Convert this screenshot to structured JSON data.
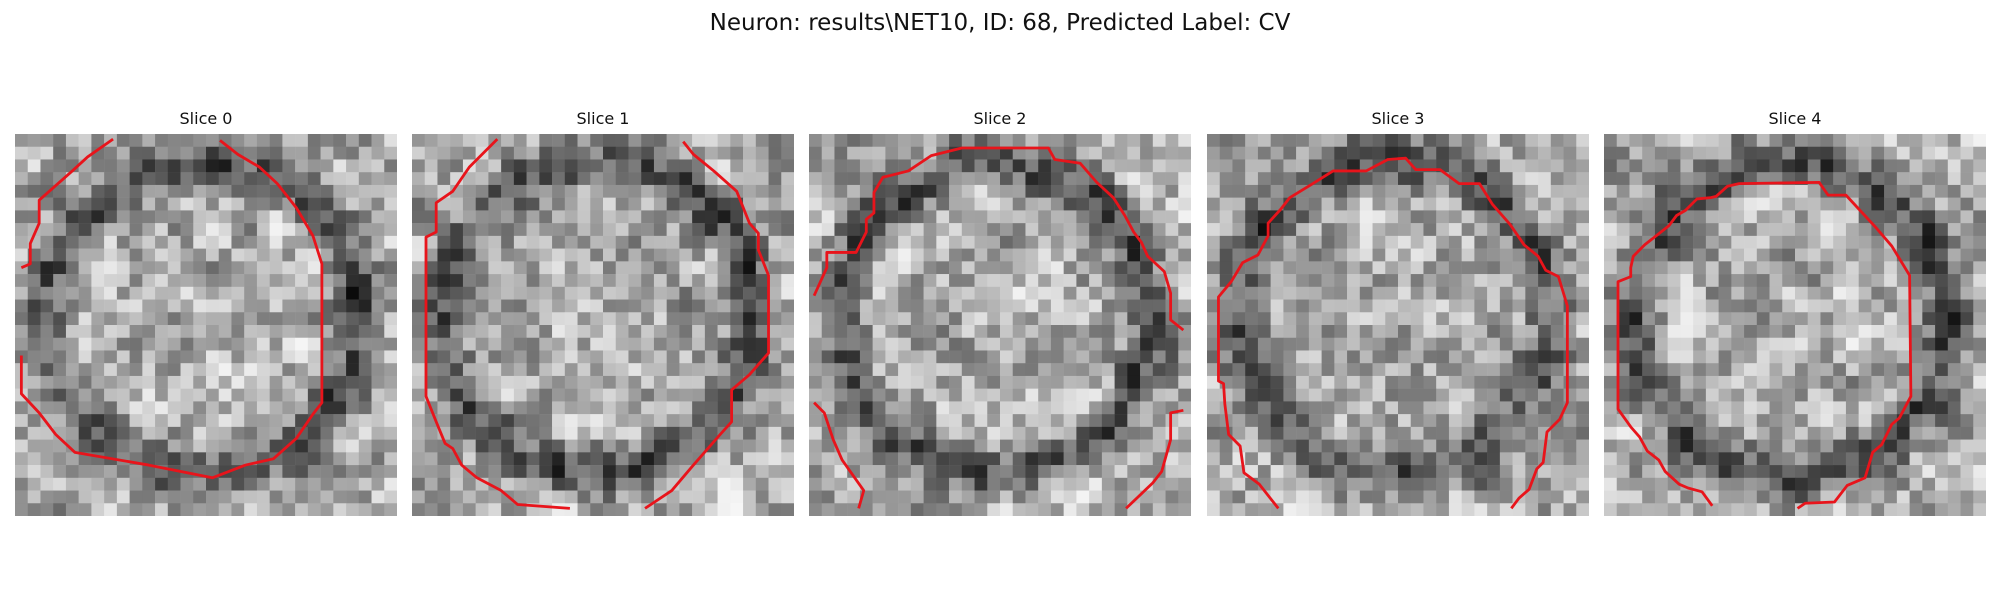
{
  "figure": {
    "title": "Neuron: results\\NET10, ID: 68, Predicted Label: CV"
  },
  "contour_color": "#e8141b",
  "colormap": "grayscale",
  "slices": [
    {
      "title": "Slice 0"
    },
    {
      "title": "Slice 1"
    },
    {
      "title": "Slice 2"
    },
    {
      "title": "Slice 3"
    },
    {
      "title": "Slice 4"
    }
  ]
}
